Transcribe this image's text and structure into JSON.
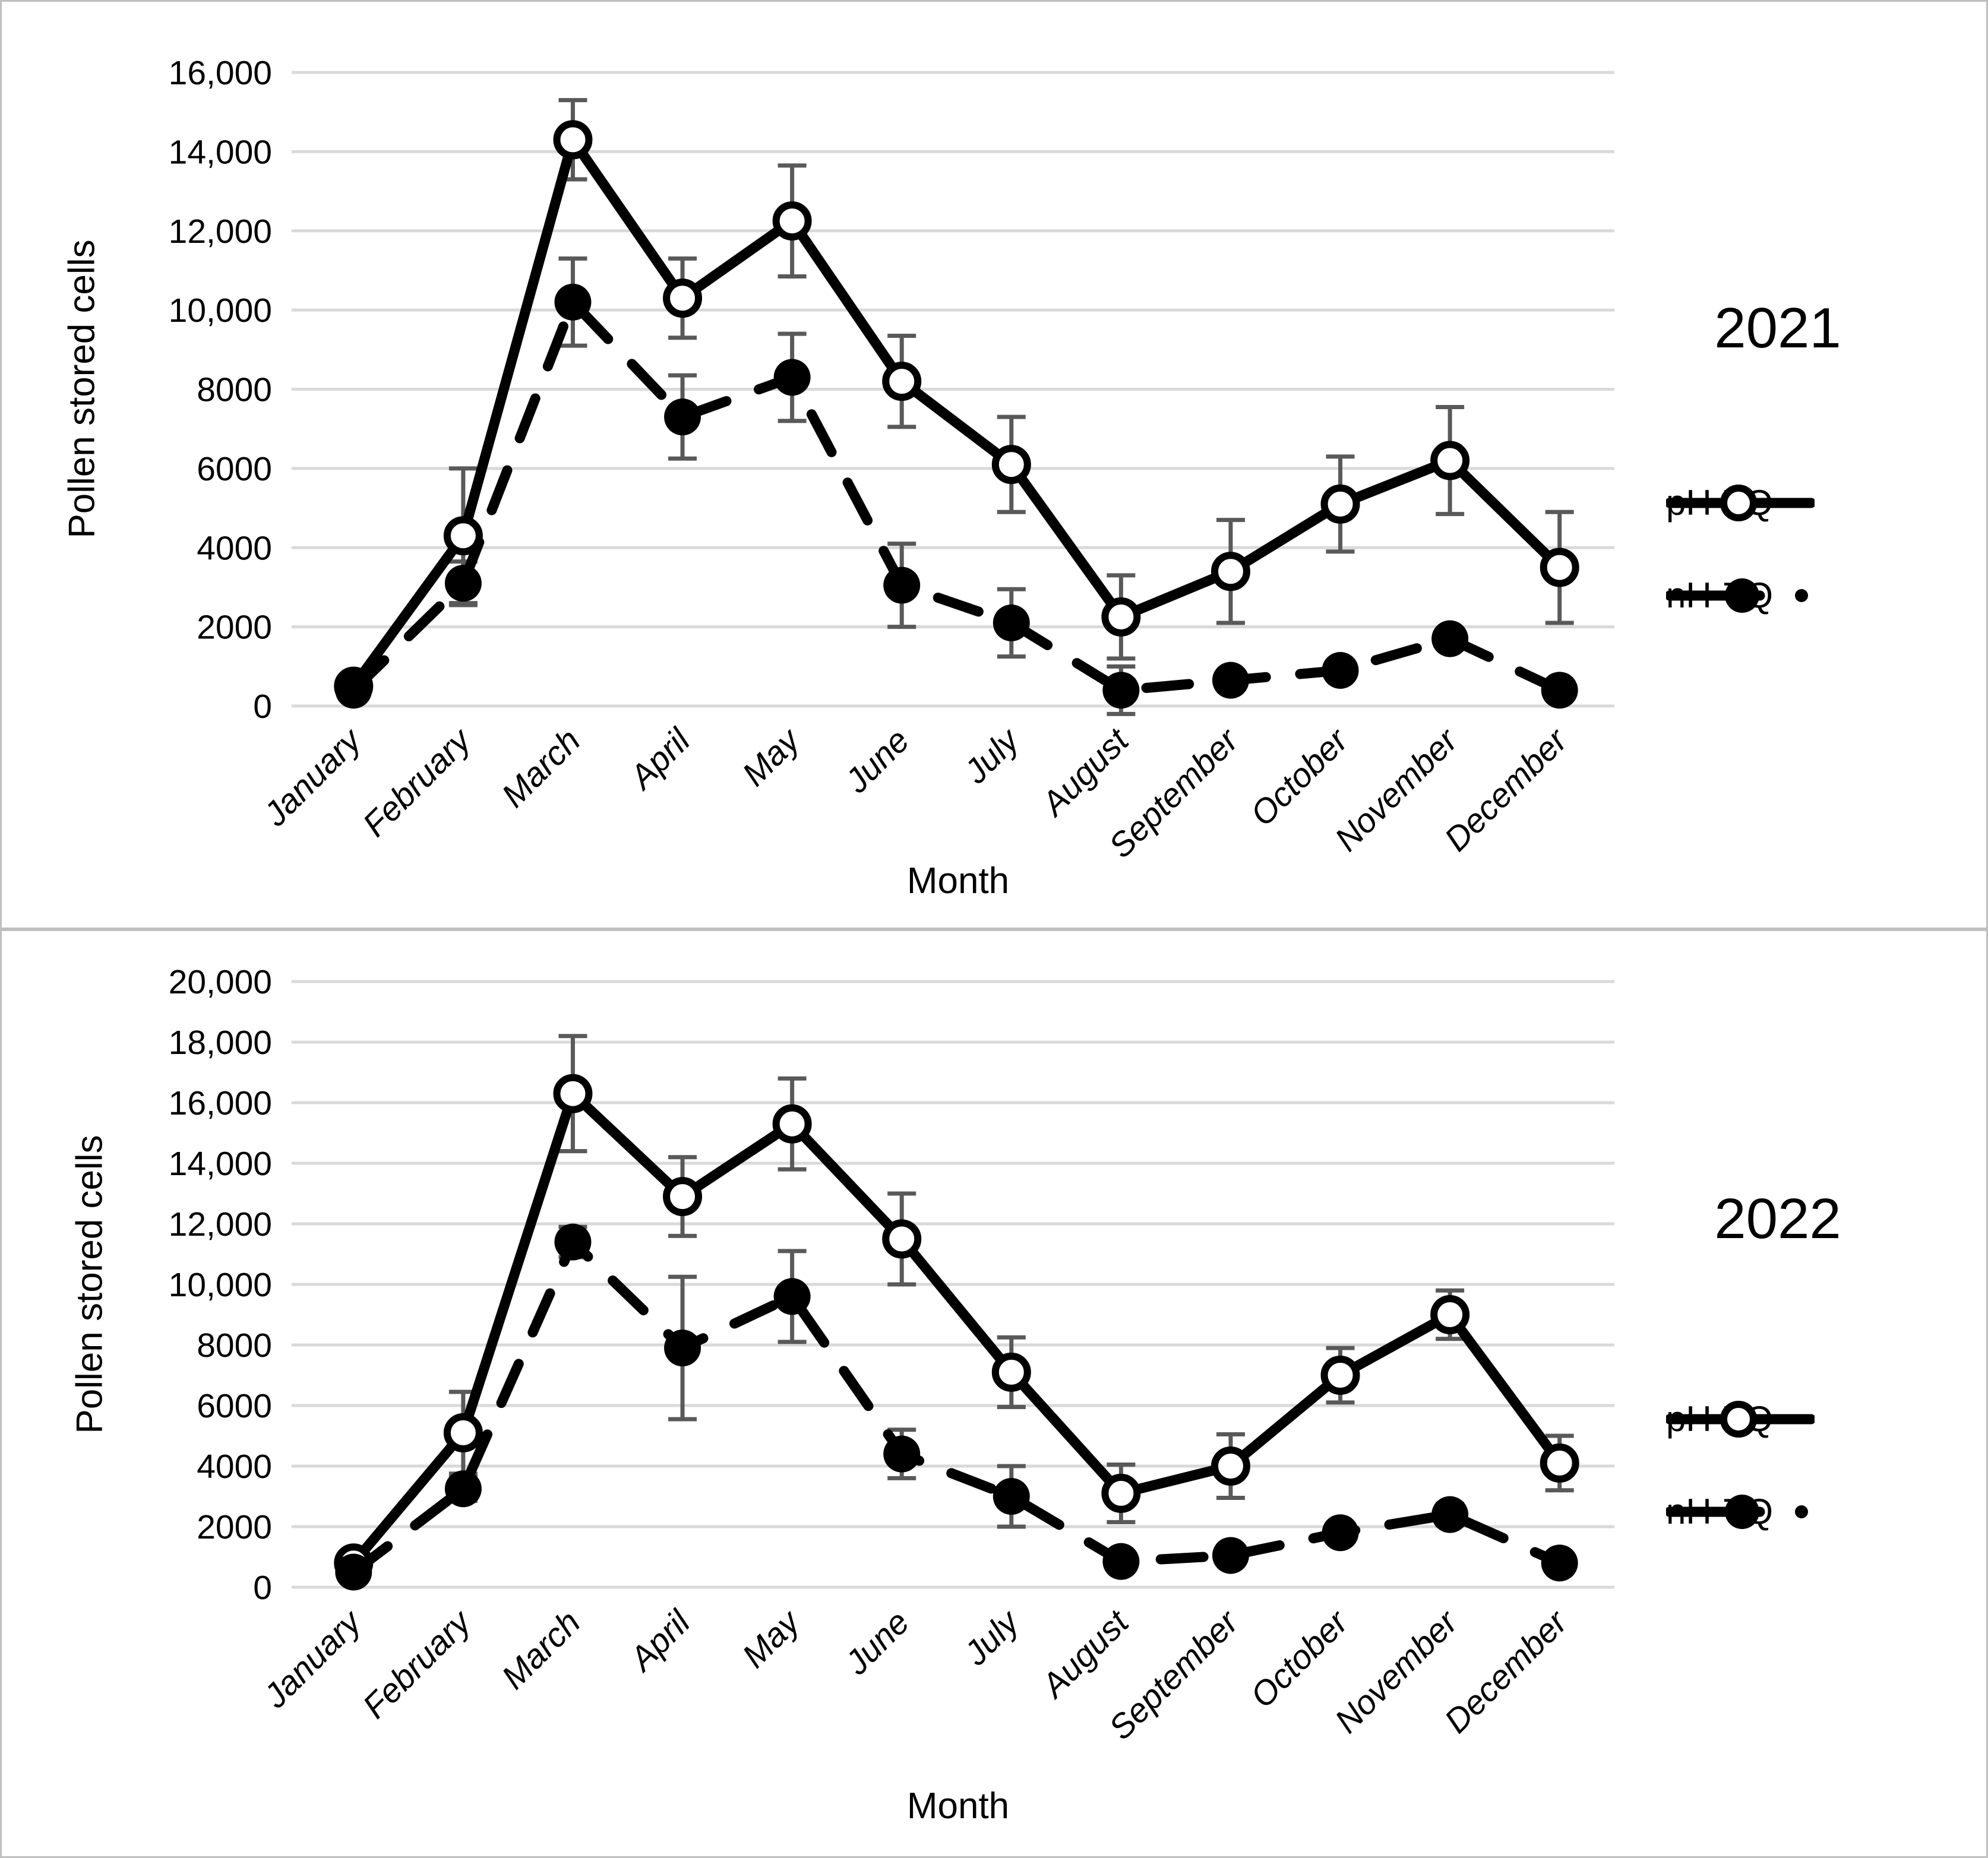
{
  "figure": {
    "background": "#ffffff",
    "border_color": "#bfbfbf"
  },
  "colors": {
    "series_line": "#000000",
    "error_bar": "#595959",
    "gridline": "#d9d9d9",
    "text": "#000000",
    "marker_open_fill": "#ffffff"
  },
  "chart_data": [
    {
      "type": "line",
      "title": "2021",
      "xlabel": "Month",
      "ylabel": "Pollen stored cells",
      "categories": [
        "January",
        "February",
        "March",
        "April",
        "May",
        "June",
        "July",
        "August",
        "September",
        "October",
        "November",
        "December"
      ],
      "ylim": [
        0,
        16000
      ],
      "ytick_step": 2000,
      "ytick_labels": [
        "0",
        "2000",
        "4000",
        "6000",
        "8000",
        "10,000",
        "12,000",
        "14,000",
        "16,000"
      ],
      "grid": true,
      "legend_position": "right",
      "error_bars": true,
      "series": [
        {
          "name": "pH-TQ",
          "line": "solid",
          "marker": "open-circle",
          "values": [
            500,
            4300,
            14300,
            10300,
            12250,
            8200,
            6100,
            2250,
            3400,
            5100,
            6200,
            3500
          ],
          "errors": [
            200,
            1700,
            1000,
            1000,
            1400,
            1150,
            1200,
            1050,
            1300,
            1200,
            1350,
            1400
          ]
        },
        {
          "name": "nH-TQ",
          "line": "dashed",
          "marker": "filled-circle",
          "values": [
            400,
            3100,
            10200,
            7300,
            8300,
            3050,
            2100,
            400,
            650,
            900,
            1700,
            400
          ],
          "errors": [
            120,
            550,
            1100,
            1050,
            1100,
            1050,
            850,
            600,
            150,
            150,
            250,
            150
          ]
        }
      ]
    },
    {
      "type": "line",
      "title": "2022",
      "xlabel": "Month",
      "ylabel": "Pollen stored cells",
      "categories": [
        "January",
        "February",
        "March",
        "April",
        "May",
        "June",
        "July",
        "August",
        "September",
        "October",
        "November",
        "December"
      ],
      "ylim": [
        0,
        20000
      ],
      "ytick_step": 2000,
      "ytick_labels": [
        "0",
        "2000",
        "4000",
        "6000",
        "8000",
        "10,000",
        "12,000",
        "14,000",
        "16,000",
        "18,000",
        "20,000"
      ],
      "grid": true,
      "legend_position": "right",
      "error_bars": true,
      "series": [
        {
          "name": "pH-TQ",
          "line": "solid",
          "marker": "open-circle",
          "values": [
            800,
            5100,
            16300,
            12900,
            15300,
            11500,
            7100,
            3100,
            4000,
            7000,
            9000,
            4100
          ],
          "errors": [
            250,
            1350,
            1900,
            1300,
            1500,
            1500,
            1150,
            950,
            1050,
            900,
            800,
            900
          ]
        },
        {
          "name": "nH-TQ",
          "line": "dashed",
          "marker": "filled-circle",
          "values": [
            500,
            3250,
            11400,
            7900,
            9600,
            4400,
            3000,
            850,
            1050,
            1800,
            2400,
            800
          ],
          "errors": [
            150,
            400,
            500,
            2350,
            1500,
            800,
            1000,
            200,
            250,
            300,
            350,
            250
          ]
        }
      ]
    }
  ]
}
